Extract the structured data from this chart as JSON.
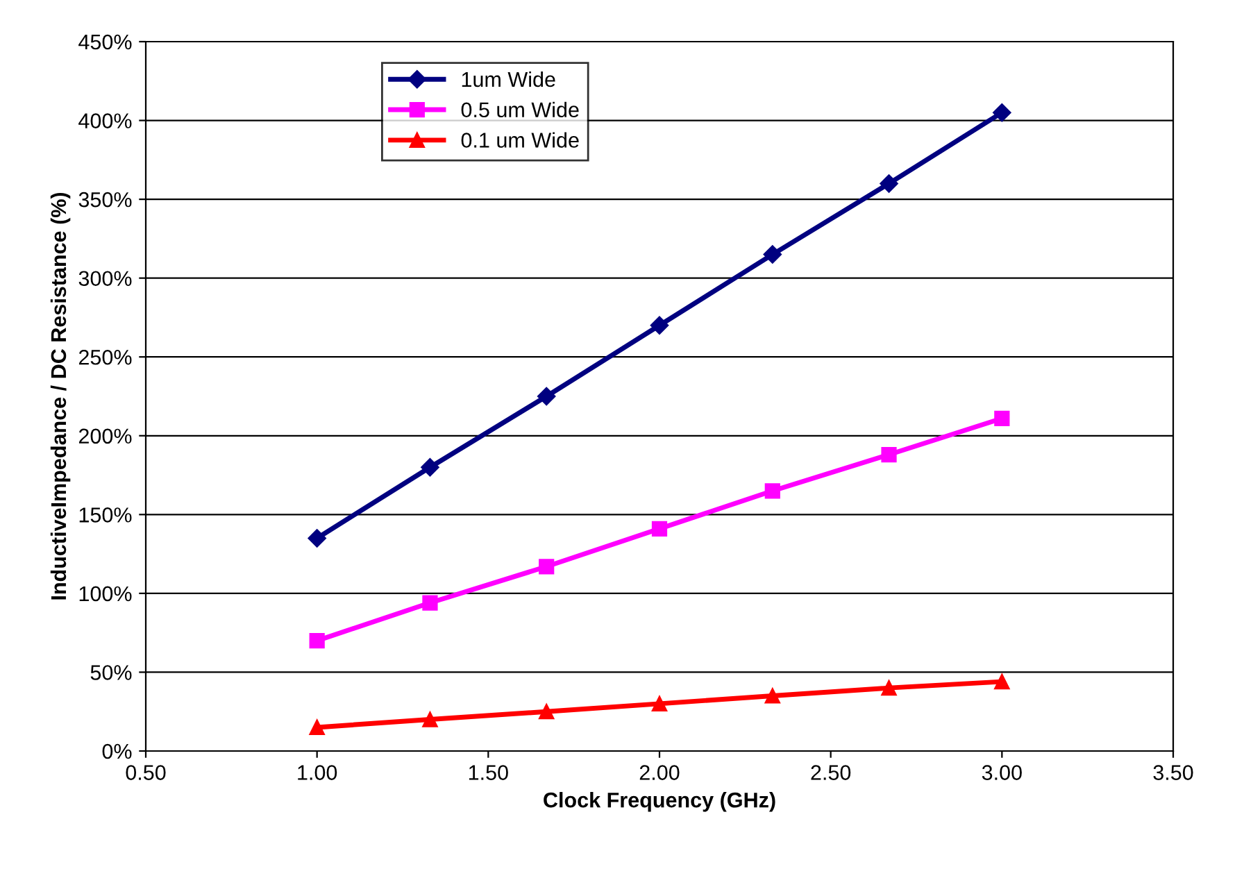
{
  "chart_data": {
    "type": "line",
    "xlabel": "Clock Frequency (GHz)",
    "ylabel": "InductiveImpedance / DC Resistance (%)",
    "xlim": [
      0.5,
      3.5
    ],
    "xticks": [
      {
        "value": 0.5,
        "label": "0.50"
      },
      {
        "value": 1.0,
        "label": "1.00"
      },
      {
        "value": 1.5,
        "label": "1.50"
      },
      {
        "value": 2.0,
        "label": "2.00"
      },
      {
        "value": 2.5,
        "label": "2.50"
      },
      {
        "value": 3.0,
        "label": "3.00"
      },
      {
        "value": 3.5,
        "label": "3.50"
      }
    ],
    "ylim": [
      0,
      450
    ],
    "yticks": [
      {
        "value": 0,
        "label": "0%"
      },
      {
        "value": 50,
        "label": "50%"
      },
      {
        "value": 100,
        "label": "100%"
      },
      {
        "value": 150,
        "label": "150%"
      },
      {
        "value": 200,
        "label": "200%"
      },
      {
        "value": 250,
        "label": "250%"
      },
      {
        "value": 300,
        "label": "300%"
      },
      {
        "value": 350,
        "label": "350%"
      },
      {
        "value": 400,
        "label": "400%"
      },
      {
        "value": 450,
        "label": "450%"
      }
    ],
    "x": [
      1.0,
      1.33,
      1.67,
      2.0,
      2.33,
      2.67,
      3.0
    ],
    "grid": "y",
    "legend": "top left",
    "line_style": "solid",
    "series": [
      {
        "name": "1um Wide",
        "color": "#000080",
        "marker": "diamond",
        "values": [
          135,
          180,
          225,
          270,
          315,
          360,
          405
        ]
      },
      {
        "name": "0.5 um Wide",
        "color": "#ff00ff",
        "marker": "square",
        "values": [
          70,
          94,
          117,
          141,
          165,
          188,
          211
        ]
      },
      {
        "name": "0.1 um Wide",
        "color": "#ff0000",
        "marker": "triangle",
        "values": [
          15,
          20,
          25,
          30,
          35,
          40,
          44
        ]
      }
    ]
  }
}
